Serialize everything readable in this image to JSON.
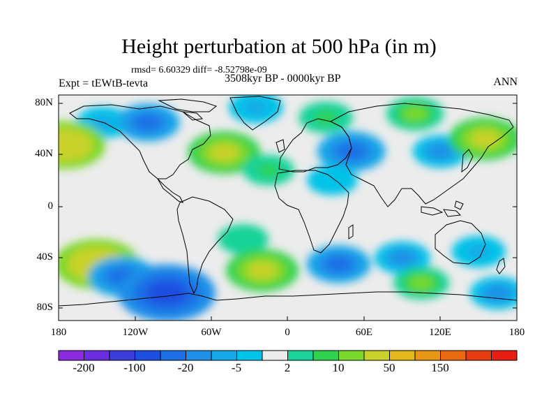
{
  "title": "Height perturbation at 500 hPa (in m)",
  "stats": "rmsd= 6.60329 diff= -8.52798e-09",
  "left_label": "Expt = tEWtB-tevta",
  "center_label": "3508kyr BP - 0000kyr BP",
  "right_label": "ANN",
  "y_ticks": [
    "80N",
    "40N",
    "0",
    "40S",
    "80S"
  ],
  "x_ticks": [
    "180",
    "120W",
    "60W",
    "0",
    "60E",
    "120E",
    "180"
  ],
  "colorbar": {
    "labels": [
      "-200",
      "-100",
      "-20",
      "-5",
      "2",
      "10",
      "50",
      "150"
    ],
    "colors": [
      "#8a2be2",
      "#6a2de0",
      "#3d3ddc",
      "#1f4fe0",
      "#1c6fe6",
      "#1f8fe8",
      "#14a8e8",
      "#00c3e8",
      "#ececec",
      "#19d39a",
      "#2ed24e",
      "#7ad82a",
      "#c8d22a",
      "#e2b81c",
      "#e89614",
      "#ea6a12",
      "#e83c10",
      "#e81e12"
    ]
  },
  "chart_data": {
    "type": "heatmap",
    "projection": "cylindrical-equidistant",
    "lon_range": [
      -180,
      180
    ],
    "lat_range": [
      -90,
      90
    ],
    "anomalies": [
      {
        "lon": -145,
        "lat": 68,
        "value": -8
      },
      {
        "lon": -110,
        "lat": 68,
        "value": -20
      },
      {
        "lon": -170,
        "lat": 55,
        "value": 12
      },
      {
        "lon": -175,
        "lat": 50,
        "value": 40
      },
      {
        "lon": -55,
        "lat": 45,
        "value": -10
      },
      {
        "lon": -50,
        "lat": 44,
        "value": 30
      },
      {
        "lon": -25,
        "lat": 80,
        "value": -8
      },
      {
        "lon": 30,
        "lat": 72,
        "value": 8
      },
      {
        "lon": 50,
        "lat": 45,
        "value": -25
      },
      {
        "lon": 120,
        "lat": 45,
        "value": -10
      },
      {
        "lon": 100,
        "lat": 75,
        "value": 12
      },
      {
        "lon": 155,
        "lat": 55,
        "value": 30
      },
      {
        "lon": -15,
        "lat": 30,
        "value": 5
      },
      {
        "lon": 35,
        "lat": 22,
        "value": -4
      },
      {
        "lon": -35,
        "lat": -25,
        "value": 4
      },
      {
        "lon": -150,
        "lat": -45,
        "value": 45
      },
      {
        "lon": -130,
        "lat": -55,
        "value": -25
      },
      {
        "lon": -95,
        "lat": -68,
        "value": -60
      },
      {
        "lon": -20,
        "lat": -50,
        "value": 30
      },
      {
        "lon": 40,
        "lat": -45,
        "value": -20
      },
      {
        "lon": 90,
        "lat": -40,
        "value": -10
      },
      {
        "lon": 105,
        "lat": -60,
        "value": 10
      },
      {
        "lon": 150,
        "lat": -35,
        "value": -8
      },
      {
        "lon": 165,
        "lat": -68,
        "value": -10
      }
    ]
  }
}
